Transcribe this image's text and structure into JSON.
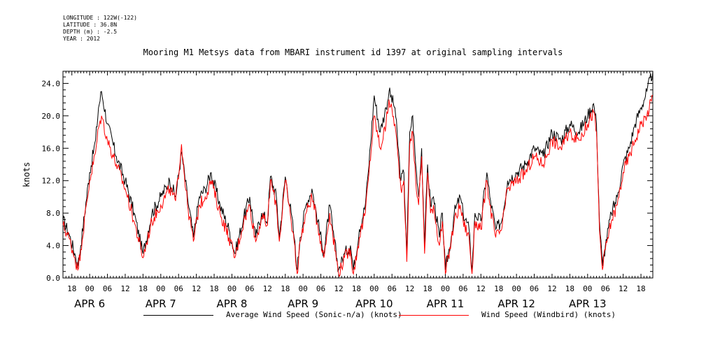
{
  "metadata": {
    "lines": [
      "LONGITUDE : 122W(-122)",
      "LATITUDE : 36.8N",
      "DEPTH (m) : -2.5",
      "YEAR : 2012"
    ]
  },
  "chart_data": {
    "type": "line",
    "title": "Mooring M1 Metsys data from MBARI instrument id 1397 at original sampling intervals",
    "xlabel": "",
    "ylabel": "knots",
    "ylim": [
      0,
      25.5
    ],
    "yticks": [
      "0.0",
      "4.0",
      "8.0",
      "12.0",
      "16.0",
      "20.0",
      "24.0"
    ],
    "x_start": "APR 5 15:00",
    "x_end": "APR 13 22:00",
    "hour_ticks": [
      "18",
      "00",
      "06",
      "12",
      "18",
      "00",
      "06",
      "12",
      "18",
      "00",
      "06",
      "12",
      "18",
      "00",
      "06",
      "12",
      "18",
      "00",
      "06",
      "12",
      "18",
      "00",
      "06",
      "12",
      "18",
      "00",
      "06",
      "12",
      "18",
      "00",
      "06",
      "12",
      "18",
      "00"
    ],
    "day_labels": [
      "APR  6",
      "APR  7",
      "APR  8",
      "APR  9",
      "APR 10",
      "APR 11",
      "APR 12",
      "APR 13"
    ],
    "grid": false,
    "colors": {
      "avg": "#000000",
      "windbird": "#ff0000"
    },
    "series": [
      {
        "name": "Average Wind Speed (Sonic-n/a) (knots)",
        "color": "#000000",
        "points": [
          [
            "APR 5 15:00",
            7.2
          ],
          [
            "APR 5 17:00",
            5.5
          ],
          [
            "APR 5 19:00",
            3.0
          ],
          [
            "APR 5 20:00",
            1.5
          ],
          [
            "APR 5 21:00",
            4.0
          ],
          [
            "APR 6 00:00",
            13
          ],
          [
            "APR 6 02:00",
            17
          ],
          [
            "APR 6 03:00",
            21
          ],
          [
            "APR 6 04:00",
            23
          ],
          [
            "APR 6 06:00",
            19
          ],
          [
            "APR 6 09:00",
            15
          ],
          [
            "APR 6 12:00",
            12
          ],
          [
            "APR 6 15:00",
            8
          ],
          [
            "APR 6 18:00",
            3
          ],
          [
            "APR 6 21:00",
            8
          ],
          [
            "APR 7 00:00",
            10
          ],
          [
            "APR 7 03:00",
            12
          ],
          [
            "APR 7 05:00",
            10
          ],
          [
            "APR 7 07:00",
            15.5
          ],
          [
            "APR 7 09:00",
            10
          ],
          [
            "APR 7 11:00",
            5
          ],
          [
            "APR 7 13:00",
            10
          ],
          [
            "APR 7 15:00",
            11
          ],
          [
            "APR 7 17:00",
            13
          ],
          [
            "APR 7 20:00",
            9
          ],
          [
            "APR 7 23:00",
            6
          ],
          [
            "APR 8 01:00",
            3
          ],
          [
            "APR 8 04:00",
            7.5
          ],
          [
            "APR 8 06:00",
            10
          ],
          [
            "APR 8 08:00",
            5
          ],
          [
            "APR 8 10:00",
            8
          ],
          [
            "APR 8 12:00",
            7
          ],
          [
            "APR 8 13:00",
            12.5
          ],
          [
            "APR 8 15:00",
            10
          ],
          [
            "APR 8 16:00",
            5
          ],
          [
            "APR 8 18:00",
            12.5
          ],
          [
            "APR 8 20:00",
            8
          ],
          [
            "APR 8 21:00",
            5
          ],
          [
            "APR 8 22:00",
            1
          ],
          [
            "APR 8 23:00",
            5
          ],
          [
            "APR 9 01:00",
            9
          ],
          [
            "APR 9 03:00",
            11
          ],
          [
            "APR 9 05:00",
            7
          ],
          [
            "APR 9 07:00",
            3
          ],
          [
            "APR 9 09:00",
            9
          ],
          [
            "APR 9 10:00",
            6
          ],
          [
            "APR 9 12:00",
            1
          ],
          [
            "APR 9 14:00",
            3
          ],
          [
            "APR 9 16:00",
            4
          ],
          [
            "APR 9 17:00",
            1
          ],
          [
            "APR 9 19:00",
            6
          ],
          [
            "APR 9 21:00",
            9
          ],
          [
            "APR 9 22:00",
            13
          ],
          [
            "APR 10 00:00",
            22.5
          ],
          [
            "APR 10 02:00",
            18
          ],
          [
            "APR 10 04:00",
            21
          ],
          [
            "APR 10 05:00",
            23
          ],
          [
            "APR 10 07:00",
            21
          ],
          [
            "APR 10 09:00",
            12
          ],
          [
            "APR 10 10:00",
            13
          ],
          [
            "APR 10 11:00",
            3
          ],
          [
            "APR 10 12:00",
            18
          ],
          [
            "APR 10 13:00",
            20
          ],
          [
            "APR 10 14:00",
            14
          ],
          [
            "APR 10 15:00",
            10
          ],
          [
            "APR 10 16:00",
            16
          ],
          [
            "APR 10 17:00",
            4
          ],
          [
            "APR 10 18:00",
            14
          ],
          [
            "APR 10 19:00",
            9
          ],
          [
            "APR 10 20:00",
            10
          ],
          [
            "APR 10 22:00",
            5
          ],
          [
            "APR 10 23:00",
            8
          ],
          [
            "APR 11 00:00",
            1
          ],
          [
            "APR 11 02:00",
            5
          ],
          [
            "APR 11 03:00",
            8
          ],
          [
            "APR 11 05:00",
            10
          ],
          [
            "APR 11 06:00",
            8
          ],
          [
            "APR 11 08:00",
            6
          ],
          [
            "APR 11 09:00",
            1
          ],
          [
            "APR 11 10:00",
            8
          ],
          [
            "APR 11 12:00",
            7
          ],
          [
            "APR 11 14:00",
            13
          ],
          [
            "APR 11 15:00",
            10
          ],
          [
            "APR 11 17:00",
            6
          ],
          [
            "APR 11 19:00",
            7
          ],
          [
            "APR 11 21:00",
            12
          ],
          [
            "APR 12 00:00",
            13
          ],
          [
            "APR 12 03:00",
            14
          ],
          [
            "APR 12 06:00",
            16
          ],
          [
            "APR 12 09:00",
            15
          ],
          [
            "APR 12 12:00",
            18
          ],
          [
            "APR 12 15:00",
            17
          ],
          [
            "APR 12 18:00",
            19
          ],
          [
            "APR 12 21:00",
            18
          ],
          [
            "APR 13 00:00",
            20
          ],
          [
            "APR 13 02:00",
            21.5
          ],
          [
            "APR 13 03:00",
            19
          ],
          [
            "APR 13 04:00",
            7
          ],
          [
            "APR 13 05:00",
            1.5
          ],
          [
            "APR 13 06:00",
            4
          ],
          [
            "APR 13 08:00",
            8
          ],
          [
            "APR 13 10:00",
            10
          ],
          [
            "APR 13 12:00",
            14
          ],
          [
            "APR 13 14:00",
            16
          ],
          [
            "APR 13 16:00",
            19
          ],
          [
            "APR 13 18:00",
            21
          ],
          [
            "APR 13 20:00",
            23
          ],
          [
            "APR 13 22:00",
            25.5
          ]
        ]
      },
      {
        "name": "Wind Speed (Windbird) (knots)",
        "color": "#ff0000",
        "points": [
          [
            "APR 5 15:00",
            6.5
          ],
          [
            "APR 5 17:00",
            5
          ],
          [
            "APR 5 19:00",
            2.5
          ],
          [
            "APR 5 20:00",
            1
          ],
          [
            "APR 5 21:00",
            3.5
          ],
          [
            "APR 6 00:00",
            12
          ],
          [
            "APR 6 02:00",
            15.5
          ],
          [
            "APR 6 03:00",
            18.5
          ],
          [
            "APR 6 04:00",
            20
          ],
          [
            "APR 6 06:00",
            17
          ],
          [
            "APR 6 09:00",
            14
          ],
          [
            "APR 6 12:00",
            11
          ],
          [
            "APR 6 15:00",
            7
          ],
          [
            "APR 6 18:00",
            2.5
          ],
          [
            "APR 6 21:00",
            7
          ],
          [
            "APR 7 00:00",
            9
          ],
          [
            "APR 7 03:00",
            11
          ],
          [
            "APR 7 05:00",
            9.5
          ],
          [
            "APR 7 07:00",
            16.5
          ],
          [
            "APR 7 09:00",
            9
          ],
          [
            "APR 7 11:00",
            4.5
          ],
          [
            "APR 7 13:00",
            9
          ],
          [
            "APR 7 15:00",
            10
          ],
          [
            "APR 7 17:00",
            12
          ],
          [
            "APR 7 20:00",
            8
          ],
          [
            "APR 7 23:00",
            5
          ],
          [
            "APR 8 01:00",
            2.5
          ],
          [
            "APR 8 04:00",
            7
          ],
          [
            "APR 8 06:00",
            9
          ],
          [
            "APR 8 08:00",
            4.5
          ],
          [
            "APR 8 10:00",
            7.5
          ],
          [
            "APR 8 12:00",
            6.5
          ],
          [
            "APR 8 13:00",
            12
          ],
          [
            "APR 8 15:00",
            9
          ],
          [
            "APR 8 16:00",
            4.5
          ],
          [
            "APR 8 18:00",
            12
          ],
          [
            "APR 8 20:00",
            7
          ],
          [
            "APR 8 21:00",
            4.5
          ],
          [
            "APR 8 22:00",
            0.5
          ],
          [
            "APR 8 23:00",
            4.5
          ],
          [
            "APR 9 01:00",
            8
          ],
          [
            "APR 9 03:00",
            10
          ],
          [
            "APR 9 05:00",
            6.5
          ],
          [
            "APR 9 07:00",
            2.5
          ],
          [
            "APR 9 09:00",
            8
          ],
          [
            "APR 9 10:00",
            5.5
          ],
          [
            "APR 9 12:00",
            0.5
          ],
          [
            "APR 9 14:00",
            2.5
          ],
          [
            "APR 9 16:00",
            3.5
          ],
          [
            "APR 9 17:00",
            0.5
          ],
          [
            "APR 9 19:00",
            5
          ],
          [
            "APR 9 21:00",
            8
          ],
          [
            "APR 9 22:00",
            12
          ],
          [
            "APR 10 00:00",
            20
          ],
          [
            "APR 10 02:00",
            16
          ],
          [
            "APR 10 04:00",
            19
          ],
          [
            "APR 10 05:00",
            22
          ],
          [
            "APR 10 07:00",
            19
          ],
          [
            "APR 10 09:00",
            11
          ],
          [
            "APR 10 10:00",
            12
          ],
          [
            "APR 10 11:00",
            2
          ],
          [
            "APR 10 12:00",
            16.5
          ],
          [
            "APR 10 13:00",
            18
          ],
          [
            "APR 10 14:00",
            12
          ],
          [
            "APR 10 15:00",
            9
          ],
          [
            "APR 10 16:00",
            15
          ],
          [
            "APR 10 17:00",
            3
          ],
          [
            "APR 10 18:00",
            13
          ],
          [
            "APR 10 19:00",
            8
          ],
          [
            "APR 10 20:00",
            9
          ],
          [
            "APR 10 22:00",
            4
          ],
          [
            "APR 10 23:00",
            7
          ],
          [
            "APR 11 00:00",
            0.5
          ],
          [
            "APR 11 02:00",
            4.5
          ],
          [
            "APR 11 03:00",
            7
          ],
          [
            "APR 11 05:00",
            9
          ],
          [
            "APR 11 06:00",
            7
          ],
          [
            "APR 11 08:00",
            5
          ],
          [
            "APR 11 09:00",
            0.5
          ],
          [
            "APR 11 10:00",
            7
          ],
          [
            "APR 11 12:00",
            6
          ],
          [
            "APR 11 14:00",
            12
          ],
          [
            "APR 11 15:00",
            9
          ],
          [
            "APR 11 17:00",
            5
          ],
          [
            "APR 11 19:00",
            6
          ],
          [
            "APR 11 21:00",
            11
          ],
          [
            "APR 12 00:00",
            12
          ],
          [
            "APR 12 03:00",
            13
          ],
          [
            "APR 12 06:00",
            15
          ],
          [
            "APR 12 09:00",
            14
          ],
          [
            "APR 12 12:00",
            17
          ],
          [
            "APR 12 15:00",
            16
          ],
          [
            "APR 12 18:00",
            18
          ],
          [
            "APR 12 21:00",
            17
          ],
          [
            "APR 13 00:00",
            19
          ],
          [
            "APR 13 02:00",
            20.5
          ],
          [
            "APR 13 03:00",
            18
          ],
          [
            "APR 13 04:00",
            6
          ],
          [
            "APR 13 05:00",
            1
          ],
          [
            "APR 13 06:00",
            3.5
          ],
          [
            "APR 13 08:00",
            7
          ],
          [
            "APR 13 10:00",
            9
          ],
          [
            "APR 13 12:00",
            13
          ],
          [
            "APR 13 14:00",
            15
          ],
          [
            "APR 13 16:00",
            17
          ],
          [
            "APR 13 18:00",
            19
          ],
          [
            "APR 13 20:00",
            20
          ],
          [
            "APR 13 22:00",
            22.5
          ]
        ]
      }
    ]
  }
}
